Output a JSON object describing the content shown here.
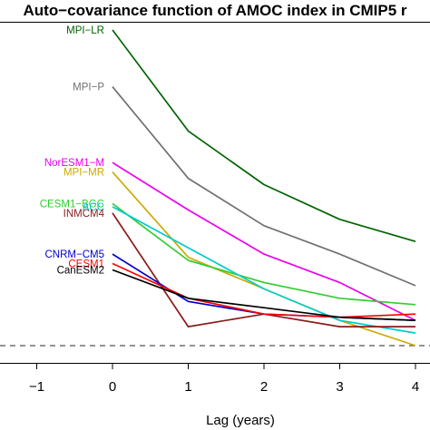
{
  "chart_data": {
    "type": "line",
    "title": "Auto−covariance function of AMOC index in CMIP5 r",
    "xlabel": "Lag (years)",
    "ylabel": "",
    "xlim": [
      -1.5,
      4.2
    ],
    "ylim": [
      -0.08,
      1.05
    ],
    "x_ticks": [
      -1,
      0,
      1,
      2,
      3,
      4
    ],
    "x_tick_labels": [
      "−1",
      "0",
      "1",
      "2",
      "3",
      "4"
    ],
    "grid": false,
    "legend": "none",
    "baseline": {
      "y": 0,
      "style": "dashed",
      "color": "#555555"
    },
    "x": [
      0,
      1,
      2,
      3,
      4
    ],
    "series": [
      {
        "name": "MPI−LR",
        "color": "#006400",
        "values": [
          1.0,
          0.68,
          0.51,
          0.4,
          0.33
        ]
      },
      {
        "name": "MPI−P",
        "color": "#707070",
        "values": [
          0.82,
          0.53,
          0.38,
          0.29,
          0.19
        ]
      },
      {
        "name": "NorESM1−M",
        "color": "#ee00ee",
        "values": [
          0.58,
          0.43,
          0.29,
          0.2,
          0.08
        ]
      },
      {
        "name": "MPI−MR",
        "color": "#ccaa00",
        "values": [
          0.55,
          0.28,
          0.18,
          0.08,
          0.0
        ]
      },
      {
        "name": "CESM1−BGC",
        "color": "#33cc33",
        "values": [
          0.45,
          0.27,
          0.2,
          0.15,
          0.13
        ]
      },
      {
        "name": "ACC",
        "color": "#00cccc",
        "values": [
          0.44,
          0.31,
          0.18,
          0.08,
          0.04
        ]
      },
      {
        "name": "INMCM4",
        "color": "#8b1a1a",
        "values": [
          0.42,
          0.06,
          0.1,
          0.06,
          0.06
        ]
      },
      {
        "name": "CNRM−CM5",
        "color": "#0000cc",
        "values": [
          0.29,
          0.14,
          0.1,
          0.09,
          0.08
        ]
      },
      {
        "name": "CESM1",
        "color": "#ff0000",
        "values": [
          0.26,
          0.15,
          0.1,
          0.09,
          0.1
        ]
      },
      {
        "name": "CanESM2",
        "color": "#000000",
        "values": [
          0.24,
          0.15,
          0.12,
          0.09,
          0.08
        ]
      }
    ]
  }
}
